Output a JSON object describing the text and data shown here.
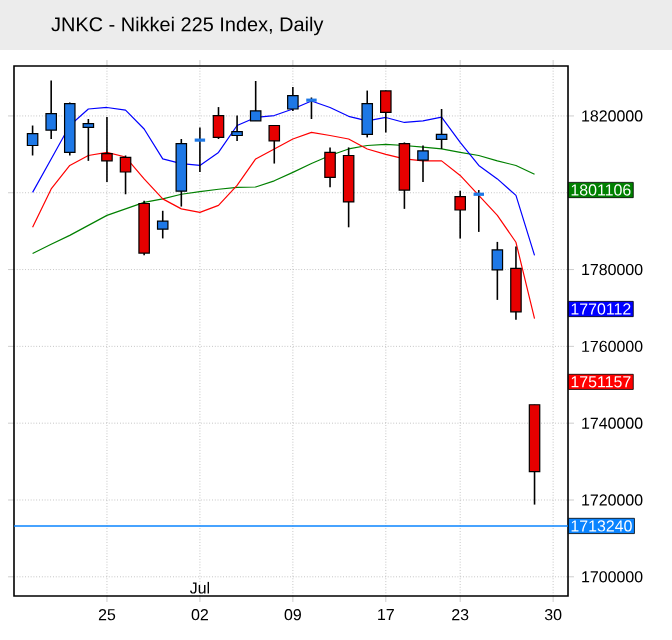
{
  "chart_data": {
    "type": "candlestick",
    "title": "JNKC - Nikkei 225 Index, Daily",
    "categories": [
      null,
      null,
      null,
      null,
      "25",
      null,
      null,
      null,
      null,
      "02",
      null,
      null,
      null,
      null,
      "09",
      null,
      null,
      null,
      null,
      "17",
      null,
      null,
      null,
      "23",
      null,
      null,
      null,
      null,
      "30"
    ],
    "ohlc": [
      [
        1812300,
        1817500,
        1809700,
        1815400
      ],
      [
        1816300,
        1829200,
        1814000,
        1820600
      ],
      [
        1810500,
        1823500,
        1809700,
        1823200
      ],
      [
        1817000,
        1819200,
        1808300,
        1818000
      ],
      [
        1810200,
        1819700,
        1802800,
        1808300
      ],
      [
        1809200,
        1809700,
        1799600,
        1805400
      ],
      [
        1797200,
        1797900,
        1783700,
        1784300
      ],
      [
        1790500,
        1795300,
        1788100,
        1792600
      ],
      [
        1800400,
        1814000,
        1796400,
        1812800
      ],
      [
        1813700,
        1817000,
        1805400,
        1813700
      ],
      [
        1820100,
        1822300,
        1814000,
        1814400
      ],
      [
        1814900,
        1820100,
        1813500,
        1815900
      ],
      [
        1818700,
        1829100,
        1818700,
        1821300
      ],
      [
        1817500,
        1817500,
        1807600,
        1813500
      ],
      [
        1821800,
        1827500,
        1821300,
        1825300
      ],
      [
        1824100,
        1824800,
        1819200,
        1824100
      ],
      [
        1810500,
        1811800,
        1801400,
        1804000
      ],
      [
        1809700,
        1811800,
        1791000,
        1797600
      ],
      [
        1815200,
        1826600,
        1814400,
        1823200
      ],
      [
        1826500,
        1826600,
        1815700,
        1820900
      ],
      [
        1812800,
        1813100,
        1795800,
        1800700
      ],
      [
        1808500,
        1812300,
        1802800,
        1810900
      ],
      [
        1813900,
        1821800,
        1811400,
        1815200
      ],
      [
        1799000,
        1800500,
        1788100,
        1795500
      ],
      [
        1799600,
        1800700,
        1789800,
        1799600
      ],
      [
        1779900,
        1787200,
        1772100,
        1785100
      ],
      [
        1780300,
        1786000,
        1766900,
        1769000
      ],
      [
        1744800,
        1744800,
        1718800,
        1727400
      ],
      null
    ],
    "colors": [
      "#1e78e6",
      "#1e78e6",
      "#1e78e6",
      "#1e78e6",
      "#e60000",
      "#e60000",
      "#e60000",
      "#1e78e6",
      "#1e78e6",
      "#1e78e6",
      "#e60000",
      "#1e78e6",
      "#1e78e6",
      "#e60000",
      "#1e78e6",
      "#1e78e6",
      "#e60000",
      "#e60000",
      "#1e78e6",
      "#e60000",
      "#e60000",
      "#1e78e6",
      "#1e78e6",
      "#e60000",
      "#1e78e6",
      "#1e78e6",
      "#e60000",
      "#e60000",
      null
    ],
    "series": [
      {
        "type": "line",
        "color": "#008000",
        "values": [
          1784200,
          1786600,
          1788900,
          1791500,
          1794100,
          1795800,
          1797500,
          1798400,
          1799600,
          1800300,
          1800900,
          1801400,
          1801500,
          1803100,
          1805300,
          1807600,
          1809700,
          1811400,
          1812300,
          1812600,
          1812300,
          1811900,
          1811400,
          1810500,
          1809700,
          1808300,
          1807100,
          1804800,
          null
        ]
      },
      {
        "type": "line",
        "color": "#0000ff",
        "values": [
          1800100,
          1808800,
          1817500,
          1821800,
          1822200,
          1821500,
          1816600,
          1808800,
          1807600,
          1807100,
          1810500,
          1817500,
          1819600,
          1820100,
          1821800,
          1823900,
          1822200,
          1819900,
          1818700,
          1819600,
          1818300,
          1818700,
          1819700,
          1813100,
          1807100,
          1803600,
          1799300,
          1783700,
          null
        ]
      },
      {
        "type": "line",
        "color": "#ff0000",
        "values": [
          1791000,
          1801000,
          1807100,
          1809700,
          1810500,
          1809300,
          1803600,
          1798400,
          1795800,
          1794900,
          1796700,
          1801900,
          1808800,
          1811400,
          1814000,
          1815700,
          1814900,
          1814000,
          1811400,
          1810000,
          1808800,
          1808300,
          1808300,
          1804500,
          1799300,
          1794100,
          1787100,
          1767200,
          null
        ]
      }
    ],
    "ylim": [
      1695000,
      1833000
    ],
    "yticks": [
      1700000,
      1720000,
      1740000,
      1760000,
      1780000,
      {
        "value": 1800000,
        "label": null
      },
      1820000
    ],
    "grid": true,
    "ref_lines": [
      {
        "axis": "y",
        "value": 1713240,
        "label": "1713240",
        "color": "#0a84ff"
      }
    ],
    "annotations": [
      "1801106",
      "1770112",
      "1751157",
      "Jul"
    ]
  }
}
